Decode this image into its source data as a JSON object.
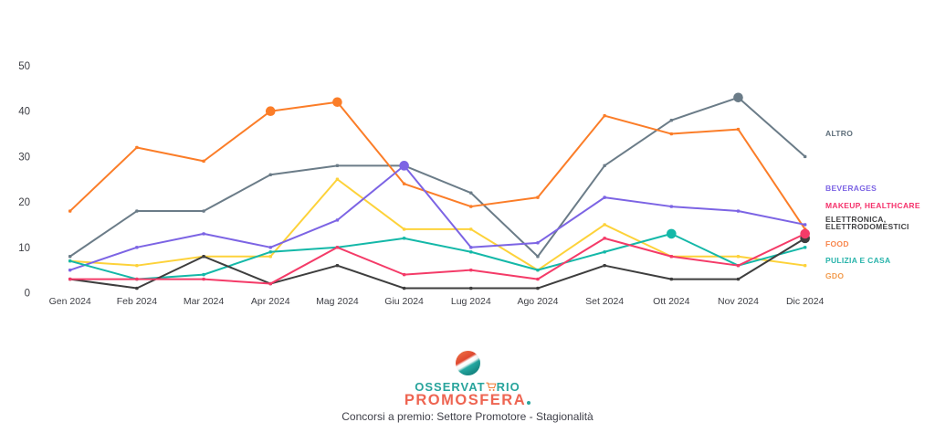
{
  "page": {
    "caption": "Concorsi a premio: Settore Promotore - Stagionalità"
  },
  "logo": {
    "wordmark_line1_pre": "OSSERVAT",
    "wordmark_line1_post": "RIO",
    "wordmark_line2": "PROMOSFERA",
    "teal": "#28a49c",
    "coral": "#ee6552",
    "cart_orange": "#f0813f"
  },
  "chart_data": {
    "type": "line",
    "title": "",
    "x_categories": [
      "Gen 2024",
      "Feb 2024",
      "Mar 2024",
      "Apr 2024",
      "Mag 2024",
      "Giu 2024",
      "Lug 2024",
      "Ago 2024",
      "Set 2024",
      "Ott 2024",
      "Nov 2024",
      "Dic 2024"
    ],
    "ylim": [
      0,
      50
    ],
    "yticks": [
      0,
      10,
      20,
      30,
      40,
      50
    ],
    "grid": false,
    "legend_position": "right",
    "axis_text_color": "#3d3e44",
    "series": [
      {
        "name": "ALTRO",
        "color": "#6b7c88",
        "values": [
          8,
          18,
          18,
          26,
          28,
          28,
          22,
          8,
          28,
          38,
          43,
          30
        ],
        "highlight_points": [
          10
        ]
      },
      {
        "name": "FOOD",
        "color": "#fb7d28",
        "values": [
          18,
          32,
          29,
          40,
          42,
          24,
          19,
          21,
          39,
          35,
          36,
          14
        ],
        "highlight_points": [
          3,
          4
        ]
      },
      {
        "name": "GDO",
        "color": "#fdd23a",
        "values": [
          7,
          6,
          8,
          8,
          25,
          14,
          14,
          5,
          15,
          8,
          8,
          6
        ],
        "highlight_points": []
      },
      {
        "name": "BEVERAGES",
        "color": "#7c64e4",
        "values": [
          5,
          10,
          13,
          10,
          16,
          28,
          10,
          11,
          21,
          19,
          18,
          15
        ],
        "highlight_points": [
          5
        ]
      },
      {
        "name": "PULIZIA E CASA",
        "color": "#14b8a8",
        "values": [
          7,
          3,
          4,
          9,
          10,
          12,
          9,
          5,
          9,
          13,
          6,
          10
        ],
        "highlight_points": [
          9
        ]
      },
      {
        "name": "ELETTRONICA, ELETTRODOMESTICI",
        "color": "#3e3e3e",
        "values": [
          3,
          1,
          8,
          2,
          6,
          1,
          1,
          1,
          6,
          3,
          3,
          12
        ],
        "highlight_points": [
          11
        ]
      },
      {
        "name": "MAKEUP, HEALTHCARE",
        "color": "#f43b68",
        "values": [
          3,
          3,
          3,
          2,
          10,
          4,
          5,
          3,
          12,
          8,
          6,
          13
        ],
        "highlight_points": [
          11
        ]
      }
    ],
    "legend": [
      {
        "label": "ALTRO",
        "color": "#5e6e7a"
      },
      {
        "label": "BEVERAGES",
        "color": "#7c64e4"
      },
      {
        "label": "MAKEUP, HEALTHCARE",
        "color": "#f5316b"
      },
      {
        "label": "ELETTRONICA,\nELETTRODOMESTICI",
        "color": "#3f3f41"
      },
      {
        "label": "FOOD",
        "color": "#f8864d"
      },
      {
        "label": "PULIZIA E CASA",
        "color": "#27b3aa"
      },
      {
        "label": "GDO",
        "color": "#f29b4d"
      }
    ]
  }
}
